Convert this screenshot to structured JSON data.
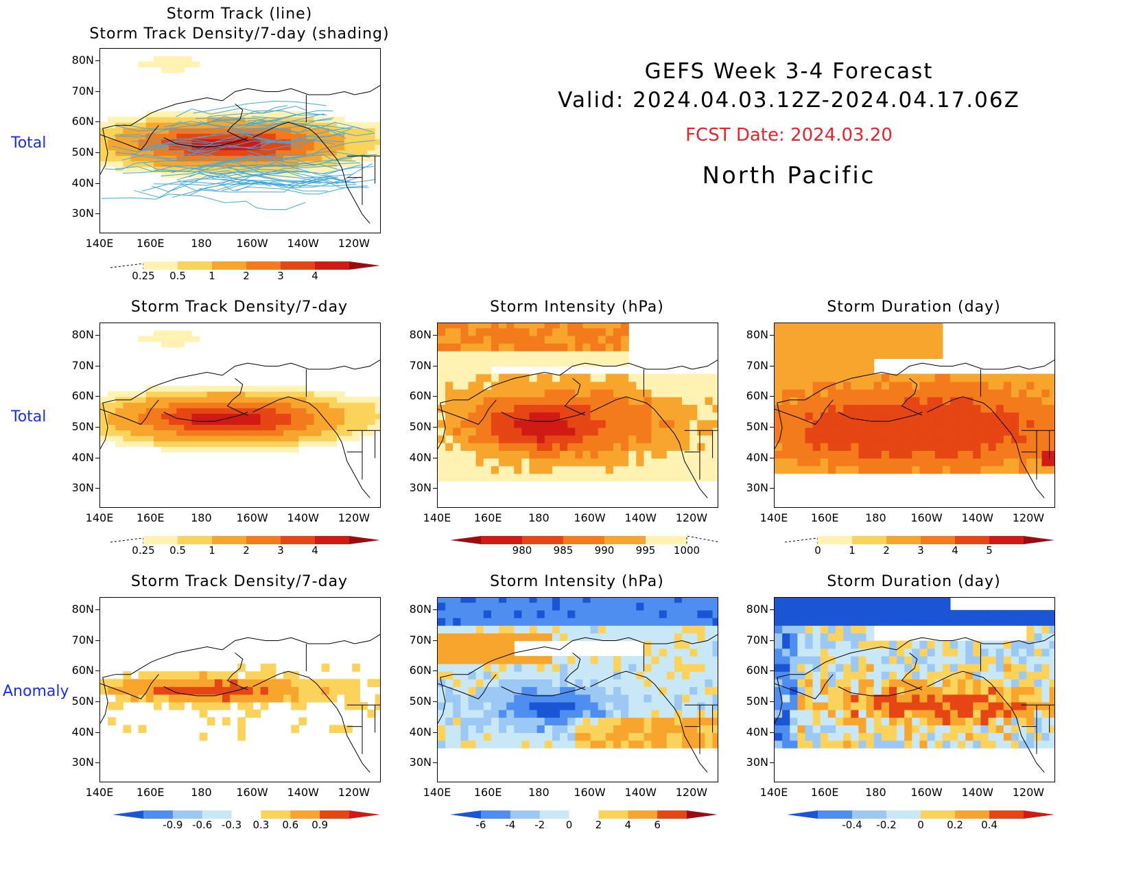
{
  "header": {
    "line1": "GEFS Week 3-4 Forecast",
    "line2": "Valid: 2024.04.03.12Z-2024.04.17.06Z",
    "fcst_date": "FCST Date: 2024.03.20",
    "region": "North Pacific"
  },
  "row_labels": {
    "top": "Total",
    "middle": "Total",
    "bottom": "Anomaly"
  },
  "colors": {
    "title_red": "#e8242b",
    "row_label_blue": "#1530e6",
    "track_line": "#3fa9e0",
    "warm": [
      "#fff2b2",
      "#fcd35a",
      "#f7a52c",
      "#f37b1c",
      "#e64514",
      "#cf1b14",
      "#9c0b10"
    ],
    "cool": [
      "#1a55d6",
      "#4d8ef0",
      "#9cc8f5",
      "#c8e8f8"
    ]
  },
  "chart_data": [
    {
      "type": "heatmap",
      "title_line1": "Storm Track (line)",
      "title_line2": "Storm Track Density/7-day (shading)",
      "x_ticks": [
        "140E",
        "160E",
        "180",
        "160W",
        "140W",
        "120W"
      ],
      "y_ticks": [
        "80N",
        "70N",
        "60N",
        "50N",
        "40N",
        "30N"
      ],
      "colorbar": {
        "labels": [
          "0.25",
          "0.5",
          "1",
          "2",
          "3",
          "4"
        ]
      },
      "note": "max density centered near 52N, 170E-150W; storm tracks overlaid as lines"
    },
    {
      "type": "heatmap",
      "title": "Storm Track Density/7-day",
      "x_ticks": [
        "140E",
        "160E",
        "180",
        "160W",
        "140W",
        "120W"
      ],
      "y_ticks": [
        "80N",
        "70N",
        "60N",
        "50N",
        "40N",
        "30N"
      ],
      "colorbar": {
        "labels": [
          "0.25",
          "0.5",
          "1",
          "2",
          "3",
          "4"
        ]
      }
    },
    {
      "type": "heatmap",
      "title": "Storm Intensity (hPa)",
      "x_ticks": [
        "140E",
        "160E",
        "180",
        "160W",
        "140W",
        "120W"
      ],
      "y_ticks": [
        "80N",
        "70N",
        "60N",
        "50N",
        "40N",
        "30N"
      ],
      "colorbar": {
        "labels": [
          "980",
          "985",
          "990",
          "995",
          "1000"
        ]
      }
    },
    {
      "type": "heatmap",
      "title": "Storm Duration (day)",
      "x_ticks": [
        "140E",
        "160E",
        "180",
        "160W",
        "140W",
        "120W"
      ],
      "y_ticks": [
        "80N",
        "70N",
        "60N",
        "50N",
        "40N",
        "30N"
      ],
      "colorbar": {
        "labels": [
          "0",
          "1",
          "2",
          "3",
          "4",
          "5"
        ]
      }
    },
    {
      "type": "heatmap",
      "title": "Storm Track Density/7-day",
      "x_ticks": [
        "140E",
        "160E",
        "180",
        "160W",
        "140W",
        "120W"
      ],
      "y_ticks": [
        "80N",
        "70N",
        "60N",
        "50N",
        "40N",
        "30N"
      ],
      "colorbar": {
        "labels": [
          "-0.9",
          "-0.6",
          "-0.3",
          "0.3",
          "0.6",
          "0.9"
        ]
      }
    },
    {
      "type": "heatmap",
      "title": "Storm Intensity (hPa)",
      "x_ticks": [
        "140E",
        "160E",
        "180",
        "160W",
        "140W",
        "120W"
      ],
      "y_ticks": [
        "80N",
        "70N",
        "60N",
        "50N",
        "40N",
        "30N"
      ],
      "colorbar": {
        "labels": [
          "-6",
          "-4",
          "-2",
          "0",
          "2",
          "4",
          "6"
        ]
      }
    },
    {
      "type": "heatmap",
      "title": "Storm Duration (day)",
      "x_ticks": [
        "140E",
        "160E",
        "180",
        "160W",
        "140W",
        "120W"
      ],
      "y_ticks": [
        "80N",
        "70N",
        "60N",
        "50N",
        "40N",
        "30N"
      ],
      "colorbar": {
        "labels": [
          "-0.4",
          "-0.2",
          "0",
          "0.2",
          "0.4"
        ]
      }
    }
  ]
}
